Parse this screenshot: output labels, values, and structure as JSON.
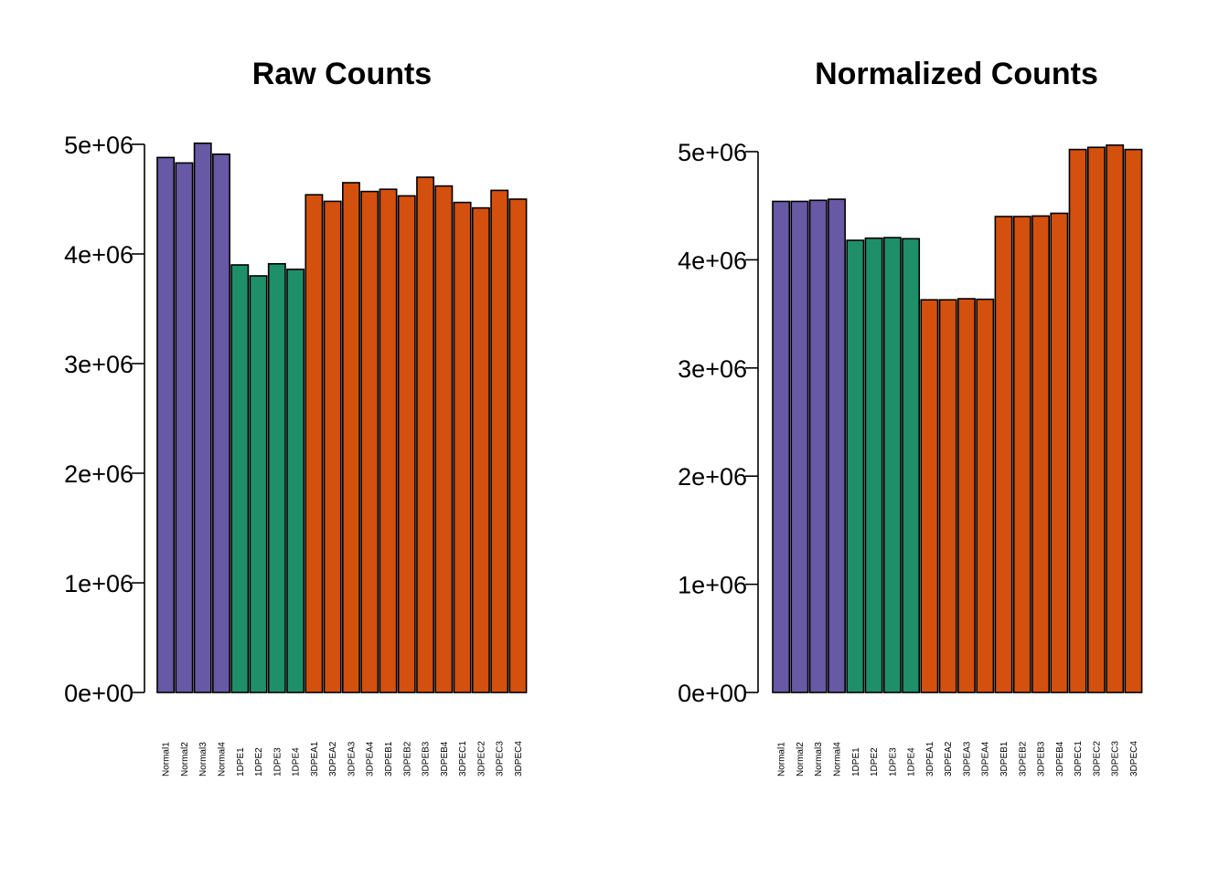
{
  "chart_data": [
    {
      "type": "bar",
      "title": "Raw Counts",
      "xlabel": "",
      "ylabel": "",
      "ylim": [
        0,
        5000000
      ],
      "yticks": [
        0,
        1000000,
        2000000,
        3000000,
        4000000,
        5000000
      ],
      "ytick_labels": [
        "0e+00",
        "1e+06",
        "2e+06",
        "3e+06",
        "4e+06",
        "5e+06"
      ],
      "categories": [
        "Normal1",
        "Normal2",
        "Normal3",
        "Normal4",
        "1DPE1",
        "1DPE2",
        "1DPE3",
        "1DPE4",
        "3DPEA1",
        "3DPEA2",
        "3DPEA3",
        "3DPEA4",
        "3DPEB1",
        "3DPEB2",
        "3DPEB3",
        "3DPEB4",
        "3DPEC1",
        "3DPEC2",
        "3DPEC3",
        "3DPEC4"
      ],
      "values": [
        4880000,
        4830000,
        5010000,
        4910000,
        3900000,
        3800000,
        3910000,
        3860000,
        4540000,
        4480000,
        4650000,
        4570000,
        4590000,
        4530000,
        4700000,
        4620000,
        4470000,
        4420000,
        4580000,
        4500000
      ],
      "bar_colors": [
        "#6759a4",
        "#6759a4",
        "#6759a4",
        "#6759a4",
        "#1f8f6a",
        "#1f8f6a",
        "#1f8f6a",
        "#1f8f6a",
        "#d4500e",
        "#d4500e",
        "#d4500e",
        "#d4500e",
        "#d4500e",
        "#d4500e",
        "#d4500e",
        "#d4500e",
        "#d4500e",
        "#d4500e",
        "#d4500e",
        "#d4500e"
      ],
      "grid": false
    },
    {
      "type": "bar",
      "title": "Normalized Counts",
      "xlabel": "",
      "ylabel": "",
      "ylim": [
        0,
        5000000
      ],
      "yticks": [
        0,
        1000000,
        2000000,
        3000000,
        4000000,
        5000000
      ],
      "ytick_labels": [
        "0e+00",
        "1e+06",
        "2e+06",
        "3e+06",
        "4e+06",
        "5e+06"
      ],
      "categories": [
        "Normal1",
        "Normal2",
        "Normal3",
        "Normal4",
        "1DPE1",
        "1DPE2",
        "1DPE3",
        "1DPE4",
        "3DPEA1",
        "3DPEA2",
        "3DPEA3",
        "3DPEA4",
        "3DPEB1",
        "3DPEB2",
        "3DPEB3",
        "3DPEB4",
        "3DPEC1",
        "3DPEC2",
        "3DPEC3",
        "3DPEC4"
      ],
      "values": [
        4540000,
        4540000,
        4550000,
        4560000,
        4180000,
        4200000,
        4205000,
        4195000,
        3630000,
        3630000,
        3640000,
        3635000,
        4400000,
        4400000,
        4405000,
        4430000,
        5020000,
        5040000,
        5060000,
        5020000
      ],
      "bar_colors": [
        "#6759a4",
        "#6759a4",
        "#6759a4",
        "#6759a4",
        "#1f8f6a",
        "#1f8f6a",
        "#1f8f6a",
        "#1f8f6a",
        "#d4500e",
        "#d4500e",
        "#d4500e",
        "#d4500e",
        "#d4500e",
        "#d4500e",
        "#d4500e",
        "#d4500e",
        "#d4500e",
        "#d4500e",
        "#d4500e",
        "#d4500e"
      ],
      "grid": false
    }
  ]
}
